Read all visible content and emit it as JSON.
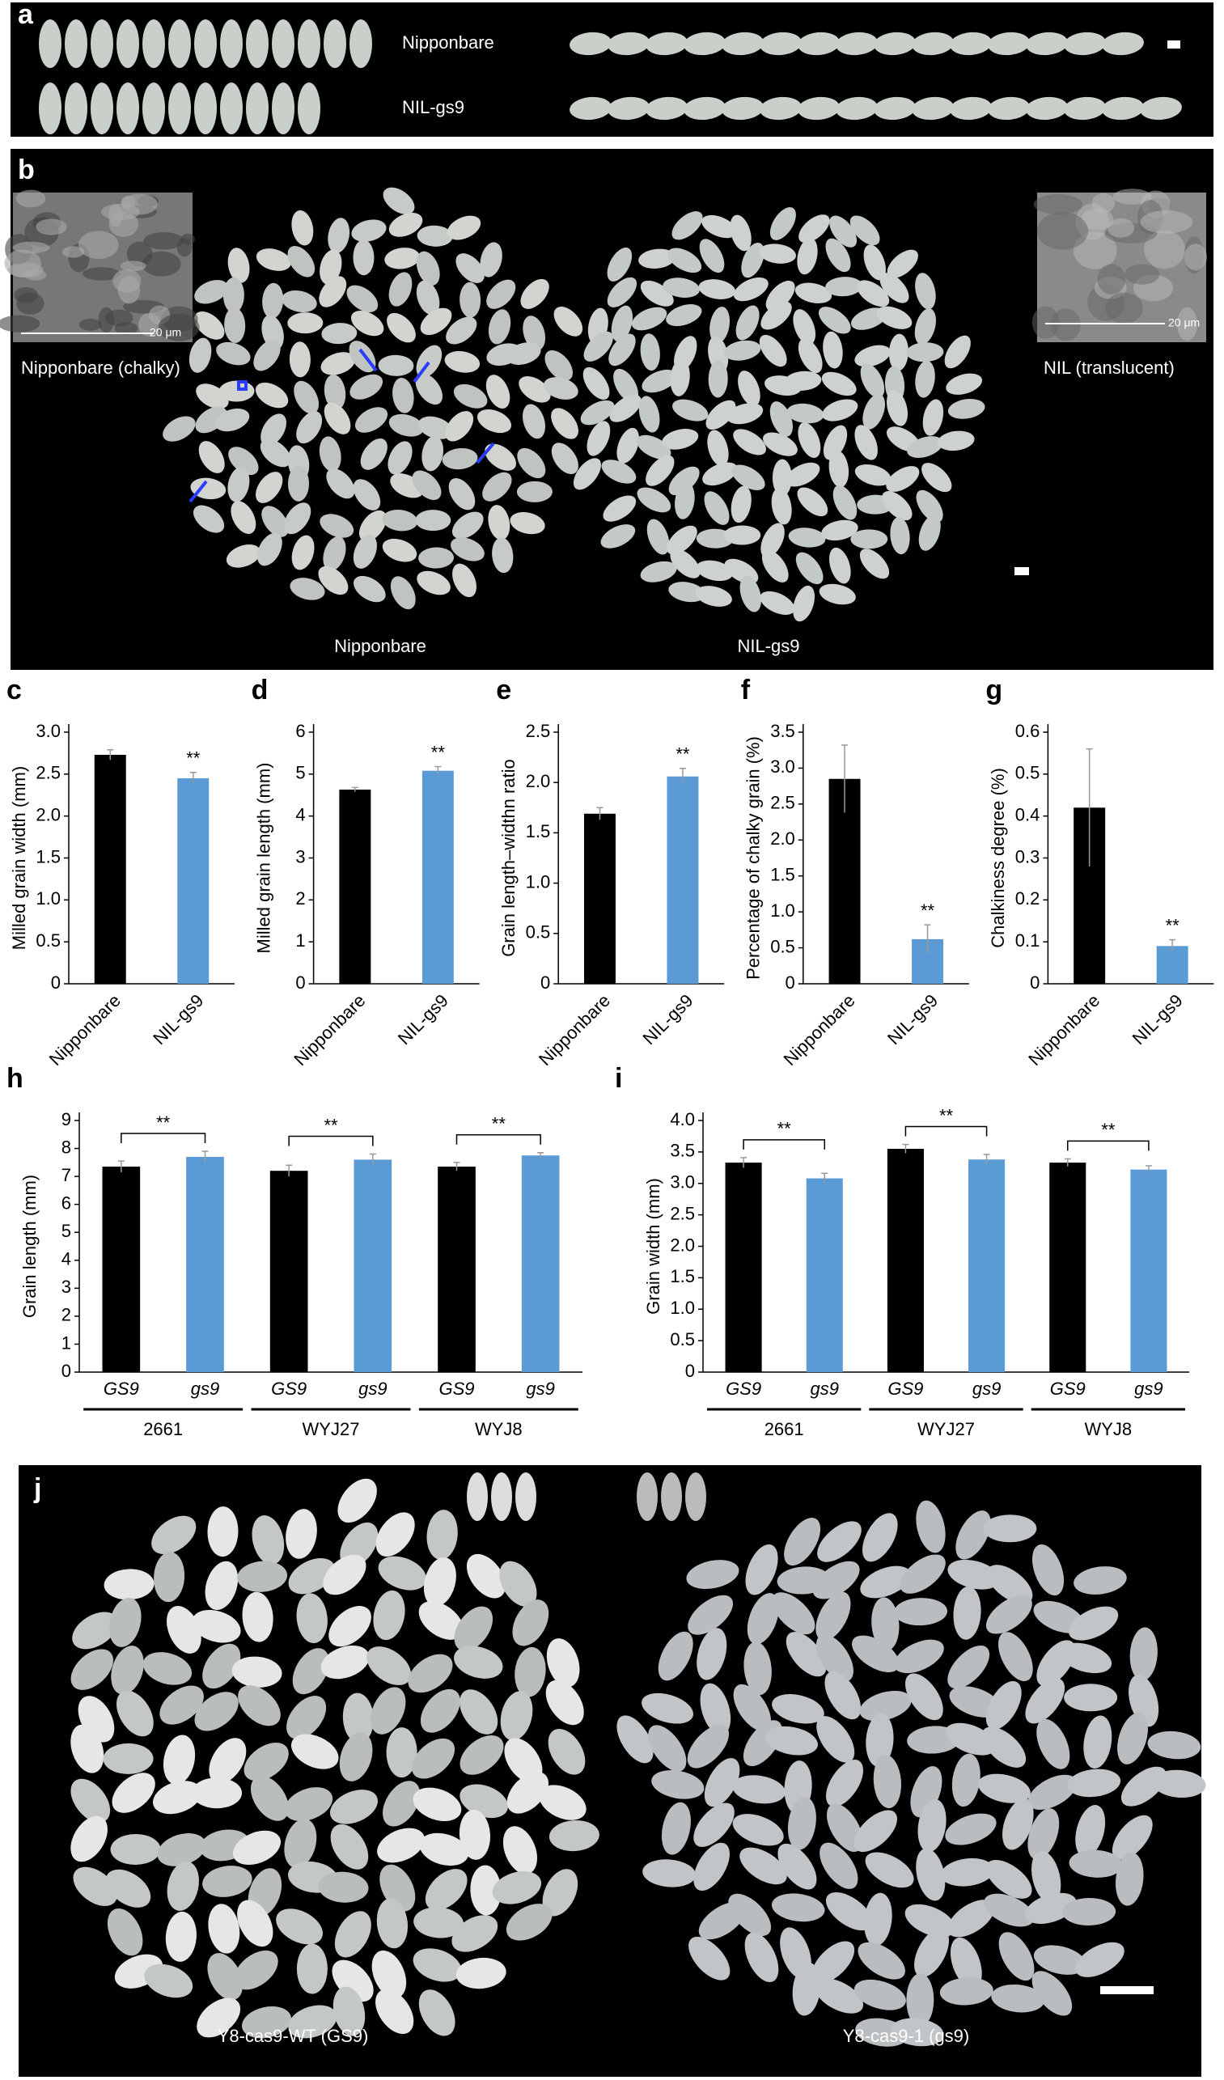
{
  "panels": {
    "a": {
      "label": "a",
      "top_text": "Nipponbare",
      "bottom_text": "NIL-gs9"
    },
    "b": {
      "label": "b",
      "inset_left": "Nipponbare (chalky)",
      "inset_right": "NIL (translucent)",
      "scale_left": "20 μm",
      "scale_right": "20 μm",
      "left_caption": "Nipponbare",
      "right_caption": "NIL-gs9"
    },
    "j": {
      "label": "j",
      "left_caption": "Y8-cas9-WT (GS9)",
      "right_caption": "Y8-cas9-1 (gs9)"
    }
  },
  "chart_data": [
    {
      "type": "bar",
      "panel": "c",
      "ylabel": "Milled grain width (mm)",
      "categories": [
        "Nipponbare",
        "NIL-gs9"
      ],
      "values": [
        2.73,
        2.45
      ],
      "errors": [
        0.06,
        0.07
      ],
      "colors": [
        "#000000",
        "#5b9bd5"
      ],
      "significance": [
        null,
        "**"
      ],
      "ylim": [
        0,
        3
      ],
      "yticks": [
        0,
        0.5,
        {
          "value": 1,
          "label": "1.0"
        },
        1.5,
        {
          "value": 2,
          "label": "2.0"
        },
        2.5,
        {
          "value": 3,
          "label": "3.0"
        }
      ]
    },
    {
      "type": "bar",
      "panel": "d",
      "ylabel": "Milled grain length (mm)",
      "categories": [
        "Nipponbare",
        "NIL-gs9"
      ],
      "values": [
        4.63,
        5.08
      ],
      "errors": [
        0.05,
        0.1
      ],
      "colors": [
        "#000000",
        "#5b9bd5"
      ],
      "significance": [
        null,
        "**"
      ],
      "ylim": [
        0,
        6
      ],
      "yticks": [
        0,
        1,
        2,
        3,
        4,
        5,
        6
      ]
    },
    {
      "type": "bar",
      "panel": "e",
      "ylabel": "Grain length–widthn ratio",
      "categories": [
        "Nipponbare",
        "NIL-gs9"
      ],
      "values": [
        1.69,
        2.06
      ],
      "errors": [
        0.06,
        0.08
      ],
      "colors": [
        "#000000",
        "#5b9bd5"
      ],
      "significance": [
        null,
        "**"
      ],
      "ylim": [
        0,
        2.5
      ],
      "yticks": [
        0,
        0.5,
        {
          "value": 1,
          "label": "1.0"
        },
        1.5,
        {
          "value": 2,
          "label": "2.0"
        },
        2.5
      ]
    },
    {
      "type": "bar",
      "panel": "f",
      "ylabel": "Percentage of chalky grain (%)",
      "categories": [
        "Nipponbare",
        "NIL-gs9"
      ],
      "values": [
        2.85,
        0.62
      ],
      "errors": [
        0.47,
        0.2
      ],
      "colors": [
        "#000000",
        "#5b9bd5"
      ],
      "significance": [
        null,
        "**"
      ],
      "ylim": [
        0,
        3.5
      ],
      "yticks": [
        0,
        0.5,
        {
          "value": 1,
          "label": "1.0"
        },
        1.5,
        {
          "value": 2,
          "label": "2.0"
        },
        2.5,
        {
          "value": 3,
          "label": "3.0"
        },
        3.5
      ]
    },
    {
      "type": "bar",
      "panel": "g",
      "ylabel": "Chalkiness degree (%)",
      "categories": [
        "Nipponbare",
        "NIL-gs9"
      ],
      "values": [
        0.42,
        0.09
      ],
      "errors": [
        0.14,
        0.015
      ],
      "colors": [
        "#000000",
        "#5b9bd5"
      ],
      "significance": [
        null,
        "**"
      ],
      "ylim": [
        0,
        0.6
      ],
      "yticks": [
        0,
        0.1,
        0.2,
        0.3,
        0.4,
        0.5,
        0.6
      ]
    },
    {
      "type": "groupedbar",
      "panel": "h",
      "ylabel": "Grain length (mm)",
      "categories": [
        "GS9",
        "gs9",
        "GS9",
        "gs9",
        "GS9",
        "gs9"
      ],
      "groups": [
        "2661",
        "WYJ27",
        "WYJ8"
      ],
      "values": [
        7.35,
        7.7,
        7.2,
        7.6,
        7.35,
        7.75
      ],
      "errors": [
        0.2,
        0.2,
        0.2,
        0.2,
        0.15,
        0.1
      ],
      "colors": [
        "#000000",
        "#5b9bd5",
        "#000000",
        "#5b9bd5",
        "#000000",
        "#5b9bd5"
      ],
      "group_significance": [
        "**",
        "**",
        "**"
      ],
      "ylim": [
        0,
        9
      ],
      "yticks": [
        0,
        1,
        2,
        3,
        4,
        5,
        6,
        7,
        8,
        9
      ]
    },
    {
      "type": "groupedbar",
      "panel": "i",
      "ylabel": "Grain width (mm)",
      "categories": [
        "GS9",
        "gs9",
        "GS9",
        "gs9",
        "GS9",
        "gs9"
      ],
      "groups": [
        "2661",
        "WYJ27",
        "WYJ8"
      ],
      "values": [
        3.33,
        3.08,
        3.55,
        3.38,
        3.33,
        3.22
      ],
      "errors": [
        0.08,
        0.08,
        0.07,
        0.08,
        0.06,
        0.06
      ],
      "colors": [
        "#000000",
        "#5b9bd5",
        "#000000",
        "#5b9bd5",
        "#000000",
        "#5b9bd5"
      ],
      "group_significance": [
        "**",
        "**",
        "**"
      ],
      "ylim": [
        0,
        4
      ],
      "yticks": [
        0,
        0.5,
        {
          "value": 1,
          "label": "1.0"
        },
        1.5,
        {
          "value": 2,
          "label": "2.0"
        },
        2.5,
        {
          "value": 3,
          "label": "3.0"
        },
        3.5,
        {
          "value": 4,
          "label": "4.0"
        }
      ]
    }
  ]
}
